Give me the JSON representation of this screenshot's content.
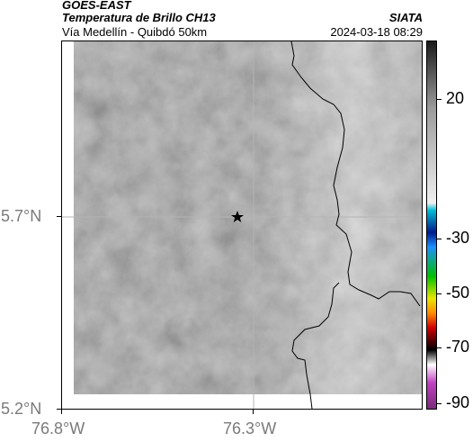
{
  "header": {
    "satellite": "GOES-EAST",
    "product": "Temperatura de Brillo CH13",
    "route": "Vía Medellín - Quibdó 50km",
    "agency": "SIATA",
    "timestamp": "2024-03-18 08:29"
  },
  "map": {
    "latitude_labels": [
      "5.7°N",
      "5.2°N"
    ],
    "longitude_labels": [
      "76.8°W",
      "76.3°W"
    ],
    "marker": "star",
    "gridlines": true
  },
  "colorbar": {
    "labels": [
      "20",
      "-30",
      "-50",
      "-70",
      "-90"
    ],
    "colors": [
      "#1a1a1a",
      "#9a9a9a",
      "#f0f0f0",
      "#00bcd4",
      "#001a8c",
      "#1e90ff",
      "#00c000",
      "#e8e800",
      "#ff8c00",
      "#d00000",
      "#000000",
      "#ffffff",
      "#c040c0",
      "#7a2a7a"
    ]
  }
}
